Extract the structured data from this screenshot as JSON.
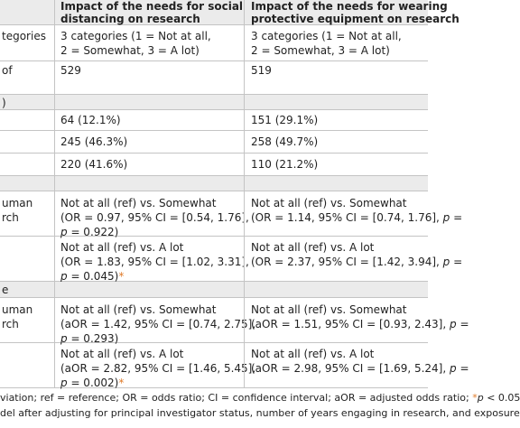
{
  "table": {
    "rows": [
      {
        "shaded": true,
        "bold": true,
        "cells": [
          [],
          [
            "Impact of the needs for social",
            "distancing on research"
          ],
          [
            "Impact of the needs for wearing",
            "protective equipment on research"
          ]
        ]
      },
      {
        "shaded": false,
        "cells": [
          [
            "tegories"
          ],
          [
            "3 categories (1 = Not at all,",
            "2 = Somewhat, 3 = A lot)"
          ],
          [
            "3 categories (1 = Not at all,",
            "2 = Somewhat, 3 = A lot)"
          ]
        ]
      },
      {
        "shaded": false,
        "cells": [
          [
            "of"
          ],
          [
            "529"
          ],
          [
            "519"
          ]
        ]
      },
      {
        "shaded": true,
        "cells": [
          [
            ")"
          ],
          [],
          []
        ]
      },
      {
        "shaded": false,
        "cells": [
          [],
          [
            "64 (12.1%)"
          ],
          [
            "151 (29.1%)"
          ]
        ]
      },
      {
        "shaded": false,
        "cells": [
          [],
          [
            "245 (46.3%)"
          ],
          [
            "258 (49.7%)"
          ]
        ]
      },
      {
        "shaded": false,
        "cells": [
          [],
          [
            "220 (41.6%)"
          ],
          [
            "110 (21.2%)"
          ]
        ]
      },
      {
        "shaded": true,
        "cells": [
          [],
          [],
          []
        ]
      },
      {
        "shaded": false,
        "cells": [
          [
            "uman",
            "rch"
          ],
          [
            "Not at all (ref) vs. Somewhat",
            "(OR = 0.97, 95% CI = [0.54, 1.76],",
            "p = 0.922)"
          ],
          [
            "Not at all (ref) vs. Somewhat",
            "(OR = 1.14, 95% CI = [0.74, 1.76], p ="
          ]
        ]
      },
      {
        "shaded": false,
        "cells": [
          [],
          [
            "Not at all (ref) vs. A lot",
            "(OR = 1.83, 95% CI = [1.02, 3.31],",
            "p = 0.045)*"
          ],
          [
            "Not at all (ref) vs. A lot",
            "(OR = 2.37, 95% CI = [1.42, 3.94], p ="
          ]
        ]
      },
      {
        "shaded": true,
        "cells": [
          [
            "e"
          ],
          [],
          []
        ]
      },
      {
        "shaded": false,
        "cells": [
          [
            "uman",
            "rch"
          ],
          [
            "Not at all (ref) vs. Somewhat",
            "(aOR = 1.42, 95% CI = [0.74, 2.75],",
            "p = 0.293)"
          ],
          [
            "Not at all (ref) vs. Somewhat",
            "(aOR = 1.51, 95% CI = [0.93, 2.43], p ="
          ]
        ]
      },
      {
        "shaded": false,
        "cells": [
          [],
          [
            "Not at all (ref) vs. A lot",
            "(aOR = 2.82, 95% CI = [1.46, 5.45],",
            "p = 0.002)*"
          ],
          [
            "Not at all (ref) vs. A lot",
            "(aOR = 2.98, 95% CI = [1.69, 5.24], p ="
          ]
        ]
      }
    ]
  },
  "footnote": [
    "viation; ref = reference; OR = odds ratio; CI = confidence interval; aOR = adjusted odds ratio; *p < 0.05",
    "del after adjusting for principal investigator status, number of years engaging in research, and exposure"
  ]
}
